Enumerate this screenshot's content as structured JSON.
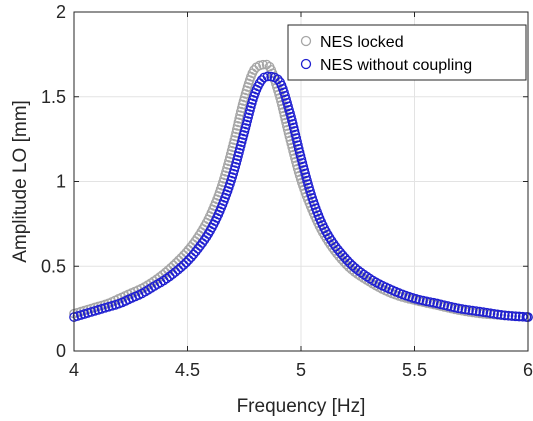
{
  "chart_data": {
    "type": "scatter",
    "xlabel": "Frequency [Hz]",
    "ylabel": "Amplitude LO [mm]",
    "xlim": [
      4,
      6
    ],
    "ylim": [
      0,
      2
    ],
    "xticks": [
      4,
      4.5,
      5,
      5.5,
      6
    ],
    "yticks": [
      0,
      0.5,
      1,
      1.5,
      2
    ],
    "xtick_labels": [
      "4",
      "4.5",
      "5",
      "5.5",
      "6"
    ],
    "ytick_labels": [
      "0",
      "0.5",
      "1",
      "1.5",
      "2"
    ],
    "grid": true,
    "legend_position": "top-right",
    "marker": "open-circle",
    "series": [
      {
        "name": "NES locked",
        "color": "#a6a6a6",
        "peak_frequency": 4.85,
        "peak_amplitude": 1.69,
        "x": [
          4.0,
          4.05,
          4.1,
          4.15,
          4.2,
          4.25,
          4.3,
          4.35,
          4.4,
          4.45,
          4.5,
          4.55,
          4.6,
          4.65,
          4.7,
          4.75,
          4.8,
          4.85,
          4.9,
          4.95,
          5.0,
          5.05,
          5.1,
          5.2,
          5.3,
          5.4,
          5.5,
          5.6,
          5.7,
          5.8,
          5.9,
          6.0
        ],
        "y": [
          0.22,
          0.24,
          0.26,
          0.28,
          0.31,
          0.34,
          0.37,
          0.41,
          0.46,
          0.52,
          0.59,
          0.68,
          0.8,
          0.97,
          1.21,
          1.49,
          1.67,
          1.69,
          1.53,
          1.26,
          1.01,
          0.83,
          0.69,
          0.51,
          0.41,
          0.34,
          0.3,
          0.27,
          0.24,
          0.22,
          0.21,
          0.2
        ]
      },
      {
        "name": "NES without coupling",
        "color": "#1f1fd0",
        "peak_frequency": 4.89,
        "peak_amplitude": 1.62,
        "x": [
          4.0,
          4.05,
          4.1,
          4.15,
          4.2,
          4.25,
          4.3,
          4.35,
          4.4,
          4.45,
          4.5,
          4.55,
          4.6,
          4.65,
          4.7,
          4.75,
          4.8,
          4.85,
          4.9,
          4.95,
          5.0,
          5.05,
          5.1,
          5.2,
          5.3,
          5.4,
          5.5,
          5.6,
          5.7,
          5.8,
          5.9,
          6.0
        ],
        "y": [
          0.2,
          0.22,
          0.24,
          0.26,
          0.28,
          0.31,
          0.34,
          0.38,
          0.42,
          0.47,
          0.53,
          0.61,
          0.71,
          0.85,
          1.04,
          1.29,
          1.53,
          1.62,
          1.6,
          1.41,
          1.14,
          0.9,
          0.73,
          0.54,
          0.43,
          0.36,
          0.31,
          0.28,
          0.25,
          0.23,
          0.21,
          0.2
        ]
      }
    ]
  }
}
